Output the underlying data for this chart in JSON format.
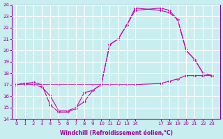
{
  "xlabel": "Windchill (Refroidissement éolien,°C)",
  "ylabel": "",
  "background_color": "#c8eef0",
  "grid_color": "#ffffff",
  "line_color": "#cc00aa",
  "ylim": [
    14,
    24
  ],
  "yticks": [
    14,
    15,
    16,
    17,
    18,
    19,
    20,
    21,
    22,
    23,
    24
  ],
  "xtick_positions": [
    0,
    1,
    2,
    3,
    4,
    5,
    6,
    7,
    8,
    9,
    10,
    11,
    12,
    13,
    14,
    17,
    18,
    19,
    20,
    21,
    22,
    23
  ],
  "xtick_labels": [
    "0",
    "1",
    "2",
    "3",
    "4",
    "5",
    "6",
    "7",
    "8",
    "9",
    "10",
    "11",
    "12",
    "13",
    "14",
    "17",
    "18",
    "19",
    "20",
    "21",
    "22",
    "23"
  ],
  "xlim": [
    -0.5,
    24
  ],
  "line1_x": [
    0,
    1,
    2,
    3,
    4,
    5,
    6,
    7,
    8,
    9,
    10,
    11,
    12,
    13,
    14,
    17,
    18,
    19,
    20,
    21,
    22,
    23
  ],
  "line1_y": [
    17.0,
    17.1,
    17.0,
    16.8,
    16.0,
    14.7,
    14.7,
    15.0,
    15.5,
    16.5,
    17.0,
    17.0,
    17.0,
    17.0,
    17.0,
    17.1,
    17.3,
    17.5,
    17.8,
    17.8,
    17.8,
    17.8
  ],
  "line2_x": [
    0,
    1,
    2,
    3,
    4,
    5,
    6,
    7,
    8,
    9,
    10,
    11,
    12,
    13,
    14,
    17,
    18,
    19,
    20,
    21,
    22,
    23
  ],
  "line2_y": [
    17.0,
    17.0,
    17.0,
    17.0,
    15.2,
    14.6,
    14.6,
    14.9,
    16.3,
    16.5,
    17.0,
    20.5,
    21.0,
    22.2,
    23.5,
    23.7,
    23.5,
    22.7,
    20.0,
    19.2,
    18.0,
    17.8
  ],
  "line3_x": [
    0,
    2,
    3,
    5,
    9,
    10,
    11,
    12,
    13,
    14,
    17,
    18,
    19,
    20,
    21,
    22,
    23
  ],
  "line3_y": [
    17.0,
    17.2,
    17.0,
    17.0,
    17.0,
    17.0,
    20.5,
    21.0,
    22.2,
    23.7,
    23.5,
    23.3,
    22.7,
    20.0,
    19.2,
    18.0,
    17.8
  ]
}
